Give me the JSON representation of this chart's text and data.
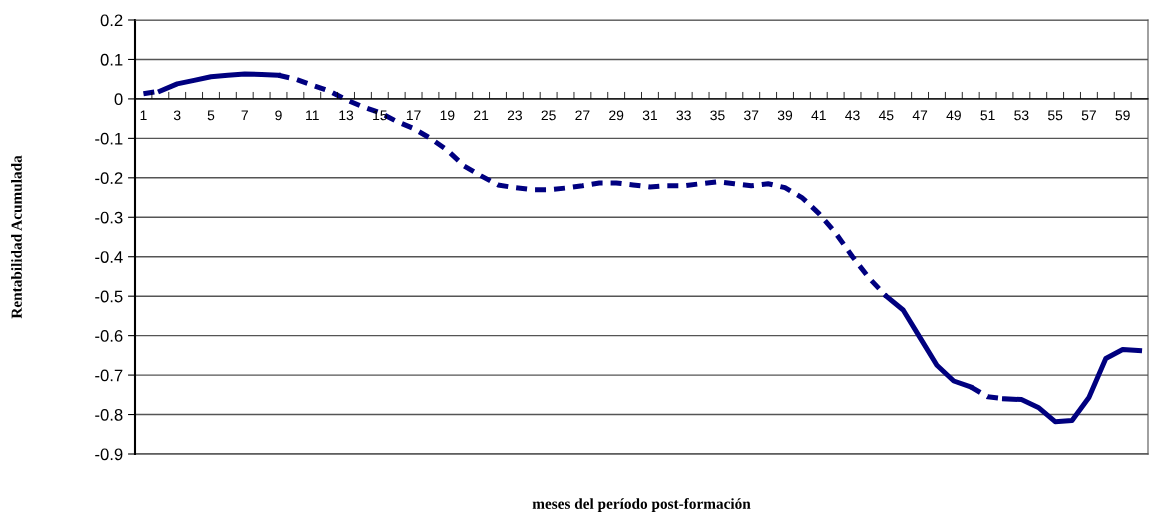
{
  "chart_data": {
    "type": "line",
    "xlabel": "meses del período post-formación",
    "ylabel": "Rentabilidad Acumulada",
    "categories": [
      "1",
      null,
      "3",
      null,
      "5",
      null,
      "7",
      null,
      "9",
      null,
      "11",
      null,
      "13",
      null,
      "15",
      null,
      "17",
      null,
      "19",
      null,
      "21",
      null,
      "23",
      null,
      "25",
      null,
      "27",
      null,
      "29",
      null,
      "31",
      null,
      "33",
      null,
      "35",
      null,
      "37",
      null,
      "39",
      null,
      "41",
      null,
      "43",
      null,
      "45",
      null,
      "47",
      null,
      "49",
      null,
      "51",
      null,
      "53",
      null,
      "55",
      null,
      "57",
      null,
      "59",
      null
    ],
    "series": [
      {
        "color": "#000080",
        "line_style": "dashed",
        "values": [
          0.013,
          0.02,
          null,
          null,
          null,
          null,
          null,
          null,
          0.06,
          0.05,
          0.035,
          0.02,
          -0.002,
          -0.02,
          -0.035,
          -0.057,
          -0.075,
          -0.1,
          -0.13,
          -0.17,
          -0.195,
          -0.218,
          -0.225,
          -0.23,
          -0.23,
          -0.226,
          -0.22,
          -0.213,
          -0.213,
          -0.218,
          -0.223,
          -0.22,
          -0.22,
          -0.215,
          -0.21,
          -0.215,
          -0.22,
          -0.215,
          -0.225,
          -0.25,
          -0.29,
          -0.34,
          -0.4,
          -0.455,
          -0.5,
          null,
          null,
          null,
          null,
          -0.73,
          -0.755,
          -0.76,
          null,
          null,
          null,
          null,
          null,
          null,
          null,
          null
        ]
      },
      {
        "color": "#00007f",
        "line_style": "solid",
        "values": [
          null,
          0.02,
          0.038,
          0.047,
          0.056,
          0.06,
          0.063,
          0.062,
          0.06,
          null,
          null,
          null,
          null,
          null,
          null,
          null,
          null,
          null,
          null,
          null,
          null,
          null,
          null,
          null,
          null,
          null,
          null,
          null,
          null,
          null,
          null,
          null,
          null,
          null,
          null,
          null,
          null,
          null,
          null,
          null,
          null,
          null,
          null,
          null,
          -0.5,
          -0.535,
          -0.605,
          -0.675,
          -0.715,
          -0.73,
          null,
          -0.76,
          -0.762,
          -0.782,
          -0.818,
          -0.815,
          -0.757,
          -0.658,
          -0.635,
          -0.638
        ]
      }
    ],
    "ylim": [
      -0.9,
      0.2
    ],
    "yticks": [
      {
        "value": -0.9,
        "label": "-0.9"
      },
      {
        "value": -0.8,
        "label": "-0.8"
      },
      {
        "value": -0.7,
        "label": "-0.7"
      },
      {
        "value": -0.6,
        "label": "-0.6"
      },
      {
        "value": -0.5,
        "label": "-0.5"
      },
      {
        "value": -0.4,
        "label": "-0.4"
      },
      {
        "value": -0.3,
        "label": "-0.3"
      },
      {
        "value": -0.2,
        "label": "-0.2"
      },
      {
        "value": -0.1,
        "label": "-0.1"
      },
      0,
      0.1,
      0.2
    ],
    "grid": "y",
    "legend": false,
    "marker": "none"
  }
}
